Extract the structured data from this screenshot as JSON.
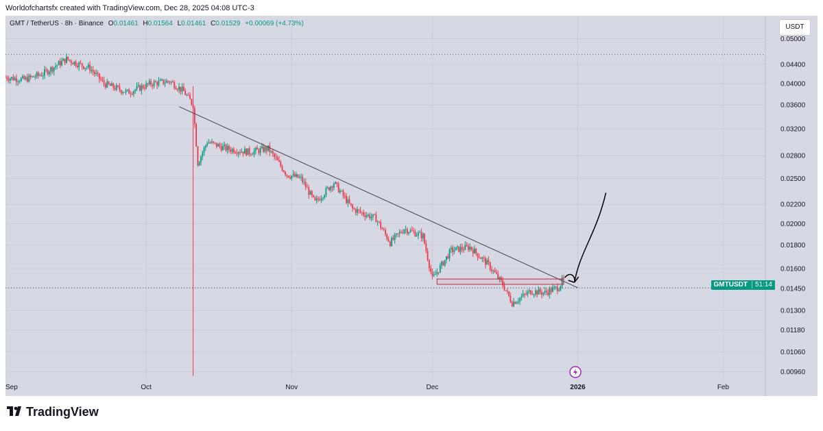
{
  "credit": "Worldofchartsfx created with TradingView.com, Dec 28, 2025 04:08 UTC-3",
  "legend": {
    "symbol": "GMT / TetherUS · 8h · Binance",
    "open_label": "O",
    "open": "0.01461",
    "high_label": "H",
    "high": "0.01564",
    "low_label": "L",
    "low": "0.01461",
    "close_label": "C",
    "close": "0.01529",
    "change": "+0.00069 (+4.73%)"
  },
  "currency_button": "USDT",
  "price_badge": {
    "symbol": "GMTUSDT",
    "countdown": "51:14"
  },
  "brand": {
    "name": "TradingView"
  },
  "colors": {
    "up": "#089981",
    "down": "#f23645",
    "background": "#d6d8e4",
    "trendline": "#444444"
  },
  "chart_data": {
    "type": "candlestick",
    "title": "GMT / TetherUS · 8h · Binance",
    "scale": "log",
    "ylim": [
      0.0092,
      0.056
    ],
    "y_ticks": [
      "0.05000",
      "0.04400",
      "0.04000",
      "0.03600",
      "0.03200",
      "0.02800",
      "0.02500",
      "0.02200",
      "0.02000",
      "0.01800",
      "0.01600",
      "0.01450",
      "0.01300",
      "0.01180",
      "0.01060",
      "0.00960"
    ],
    "x_ticks": [
      "Sep",
      "Oct",
      "Nov",
      "Dec",
      "2026",
      "Feb"
    ],
    "x_tick_days": [
      0,
      30,
      61,
      91,
      122,
      153
    ],
    "xlim_days": [
      0,
      162
    ],
    "last_price": 0.01529,
    "reference_line_prices": [
      0.0462,
      0.01455
    ],
    "trendline": [
      {
        "day": 37,
        "price": 0.0357
      },
      {
        "day": 122,
        "price": 0.01455
      }
    ],
    "crash_candle": {
      "day": 40,
      "high": 0.0395,
      "low": 0.0094
    },
    "box": {
      "day_start": 92,
      "day_end": 119,
      "price_top": 0.0152,
      "price_bottom": 0.0148
    },
    "price_path": [
      {
        "day": 0,
        "price": 0.0413
      },
      {
        "day": 4,
        "price": 0.0408
      },
      {
        "day": 8,
        "price": 0.042
      },
      {
        "day": 13,
        "price": 0.0452
      },
      {
        "day": 15,
        "price": 0.0443
      },
      {
        "day": 18,
        "price": 0.0432
      },
      {
        "day": 21,
        "price": 0.04
      },
      {
        "day": 26,
        "price": 0.0383
      },
      {
        "day": 31,
        "price": 0.04
      },
      {
        "day": 35,
        "price": 0.0405
      },
      {
        "day": 38,
        "price": 0.0385
      },
      {
        "day": 40,
        "price": 0.036
      },
      {
        "day": 41,
        "price": 0.027
      },
      {
        "day": 43,
        "price": 0.03
      },
      {
        "day": 47,
        "price": 0.029
      },
      {
        "day": 52,
        "price": 0.0285
      },
      {
        "day": 56,
        "price": 0.029
      },
      {
        "day": 60,
        "price": 0.0255
      },
      {
        "day": 63,
        "price": 0.025
      },
      {
        "day": 66,
        "price": 0.0222
      },
      {
        "day": 70,
        "price": 0.0245
      },
      {
        "day": 74,
        "price": 0.0215
      },
      {
        "day": 79,
        "price": 0.0205
      },
      {
        "day": 82,
        "price": 0.0182
      },
      {
        "day": 85,
        "price": 0.0195
      },
      {
        "day": 89,
        "price": 0.0188
      },
      {
        "day": 91,
        "price": 0.0152
      },
      {
        "day": 95,
        "price": 0.0175
      },
      {
        "day": 99,
        "price": 0.0178
      },
      {
        "day": 103,
        "price": 0.0163
      },
      {
        "day": 106,
        "price": 0.0148
      },
      {
        "day": 108,
        "price": 0.0135
      },
      {
        "day": 112,
        "price": 0.0143
      },
      {
        "day": 115,
        "price": 0.0142
      },
      {
        "day": 118,
        "price": 0.0146
      },
      {
        "day": 119,
        "price": 0.01529
      }
    ],
    "projection_arrow": [
      {
        "day": 121,
        "price": 0.0152
      },
      {
        "day": 128,
        "price": 0.0233
      }
    ]
  }
}
